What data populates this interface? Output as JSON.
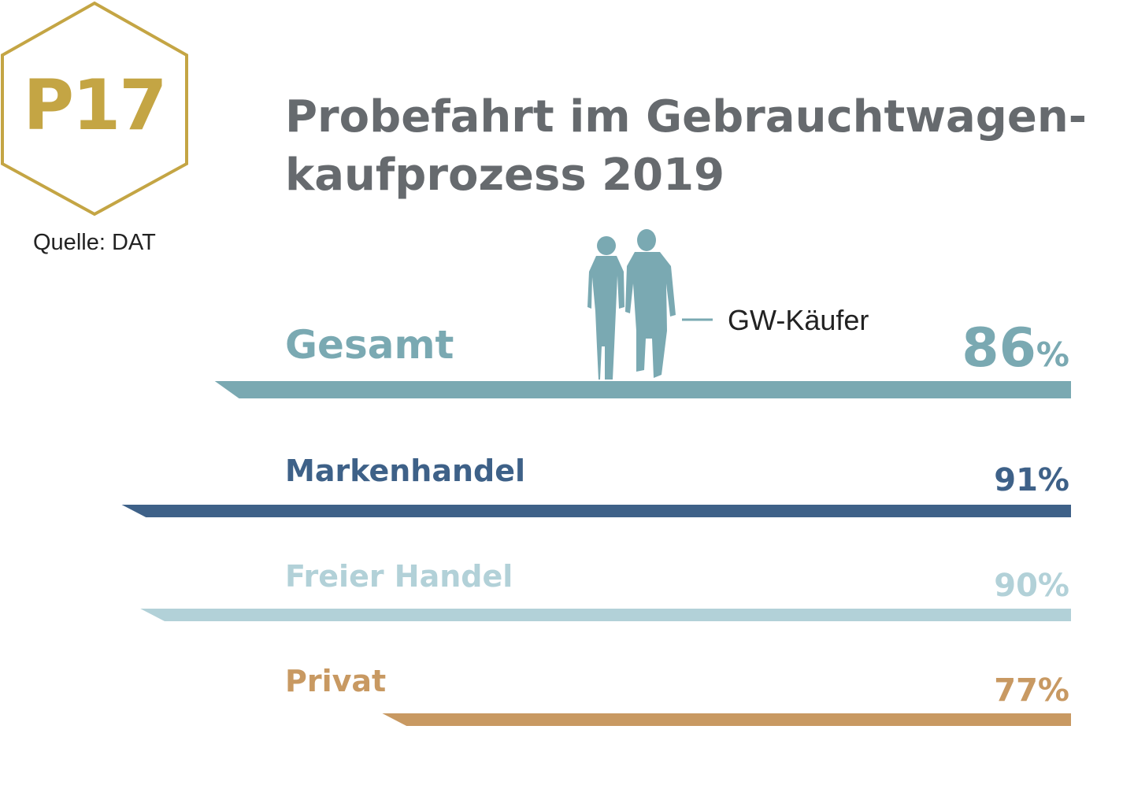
{
  "badge": {
    "code": "P17"
  },
  "source": "Quelle: DAT",
  "title_lines": [
    "Probefahrt im Gebrauchtwagen-",
    "kaufprozess 2019"
  ],
  "legend": {
    "label": "GW-Käufer"
  },
  "colors": {
    "gold": "#c4a544",
    "title": "#666a6e",
    "figure": "#7aa9b2"
  },
  "chart_data": {
    "type": "bar",
    "title": "Probefahrt im Gebrauchtwagenkaufprozess 2019",
    "unit": "%",
    "legend": "GW-Käufer",
    "categories": [
      "Gesamt",
      "Markenhandel",
      "Freier Handel",
      "Privat"
    ],
    "values": [
      86,
      91,
      90,
      77
    ],
    "labels": [
      "86%",
      "91%",
      "90%",
      "77%"
    ],
    "colors": [
      "#7aa9b2",
      "#3e6188",
      "#b2d1d8",
      "#c89962"
    ],
    "ylim": [
      0,
      100
    ]
  }
}
